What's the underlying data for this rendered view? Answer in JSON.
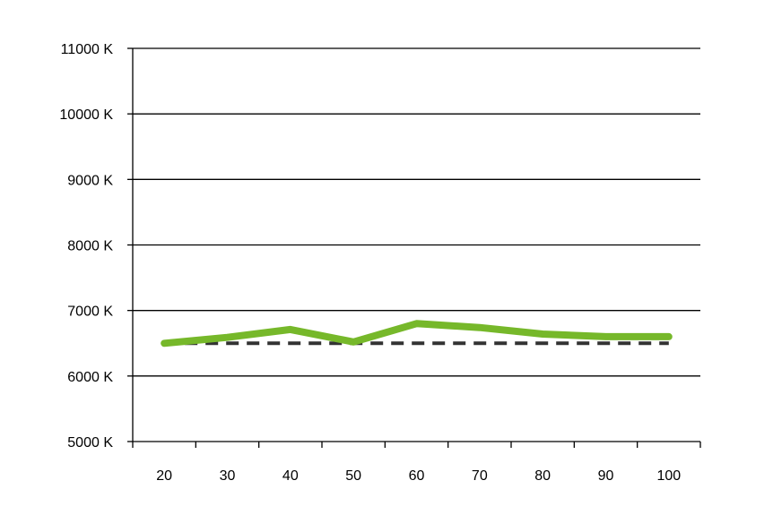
{
  "chart_data": {
    "type": "line",
    "title": "",
    "xlabel": "",
    "ylabel": "",
    "x": [
      "20",
      "30",
      "40",
      "50",
      "60",
      "70",
      "80",
      "90",
      "100"
    ],
    "yticks": [
      "5000 K",
      "6000 K",
      "7000 K",
      "8000 K",
      "9000 K",
      "10000 K",
      "11000 K"
    ],
    "ytick_values": [
      5000,
      6000,
      7000,
      8000,
      9000,
      10000,
      11000
    ],
    "ylim": [
      5000,
      11000
    ],
    "grid": "horizontal",
    "legend": "none",
    "series": [
      {
        "color": "#76b82a",
        "style": "solid",
        "values": [
          6500,
          6590,
          6710,
          6520,
          6800,
          6740,
          6640,
          6600,
          6600
        ]
      },
      {
        "color": "#333333",
        "style": "dashed",
        "values": [
          6500,
          6500,
          6500,
          6500,
          6500,
          6500,
          6500,
          6500,
          6500
        ]
      }
    ]
  }
}
